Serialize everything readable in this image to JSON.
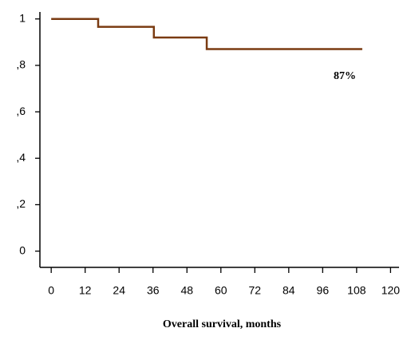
{
  "chart_data": {
    "type": "step",
    "x_label": "Overall survival, months",
    "annotation": "87%",
    "series": [
      {
        "color": "#7a3b12",
        "x": [
          0,
          16.6,
          36.3,
          55,
          110
        ],
        "values": [
          1,
          0.966,
          0.92,
          0.87,
          0.87
        ]
      }
    ],
    "xlim": [
      -4,
      123
    ],
    "ylim": [
      -0.07,
      1.03
    ],
    "xticks": [
      0,
      12,
      24,
      36,
      48,
      60,
      72,
      84,
      96,
      108,
      120
    ],
    "yticks": [
      0,
      {
        "value": 0.2,
        "label": ",2"
      },
      {
        "value": 0.4,
        "label": ",4"
      },
      {
        "value": 0.6,
        "label": ",6"
      },
      {
        "value": 0.8,
        "label": ",8"
      },
      1
    ]
  }
}
